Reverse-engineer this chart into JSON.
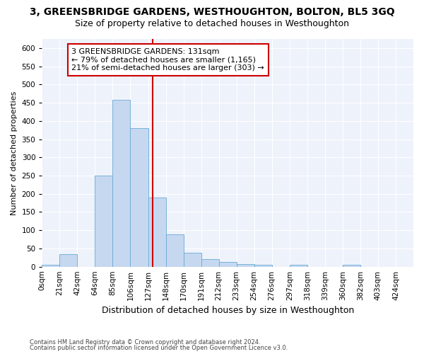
{
  "title": "3, GREENSBRIDGE GARDENS, WESTHOUGHTON, BOLTON, BL5 3GQ",
  "subtitle": "Size of property relative to detached houses in Westhoughton",
  "xlabel": "Distribution of detached houses by size in Westhoughton",
  "ylabel": "Number of detached properties",
  "footnote1": "Contains HM Land Registry data © Crown copyright and database right 2024.",
  "footnote2": "Contains public sector information licensed under the Open Government Licence v3.0.",
  "bar_values": [
    5,
    35,
    0,
    250,
    457,
    380,
    190,
    88,
    38,
    20,
    13,
    8,
    6,
    0,
    6,
    0,
    0,
    5,
    0,
    0,
    0
  ],
  "bar_labels": [
    "0sqm",
    "21sqm",
    "42sqm",
    "64sqm",
    "85sqm",
    "106sqm",
    "127sqm",
    "148sqm",
    "170sqm",
    "191sqm",
    "212sqm",
    "233sqm",
    "254sqm",
    "276sqm",
    "297sqm",
    "318sqm",
    "339sqm",
    "360sqm",
    "382sqm",
    "403sqm",
    "424sqm"
  ],
  "bar_color": "#c5d8f0",
  "bar_edge_color": "#6aaad4",
  "annotation_line": "3 GREENSBRIDGE GARDENS: 131sqm",
  "annotation_line2": "← 79% of detached houses are smaller (1,165)",
  "annotation_line3": "21% of semi-detached houses are larger (303) →",
  "annotation_box_color": "#cc0000",
  "vline_x": 6.24,
  "ylim": [
    0,
    625
  ],
  "yticks": [
    0,
    50,
    100,
    150,
    200,
    250,
    300,
    350,
    400,
    450,
    500,
    550,
    600
  ],
  "background_color": "#eef2fb",
  "grid_color": "#ffffff",
  "title_fontsize": 10,
  "subtitle_fontsize": 9,
  "xlabel_fontsize": 9,
  "ylabel_fontsize": 8,
  "tick_fontsize": 7.5,
  "annotation_fontsize": 8
}
